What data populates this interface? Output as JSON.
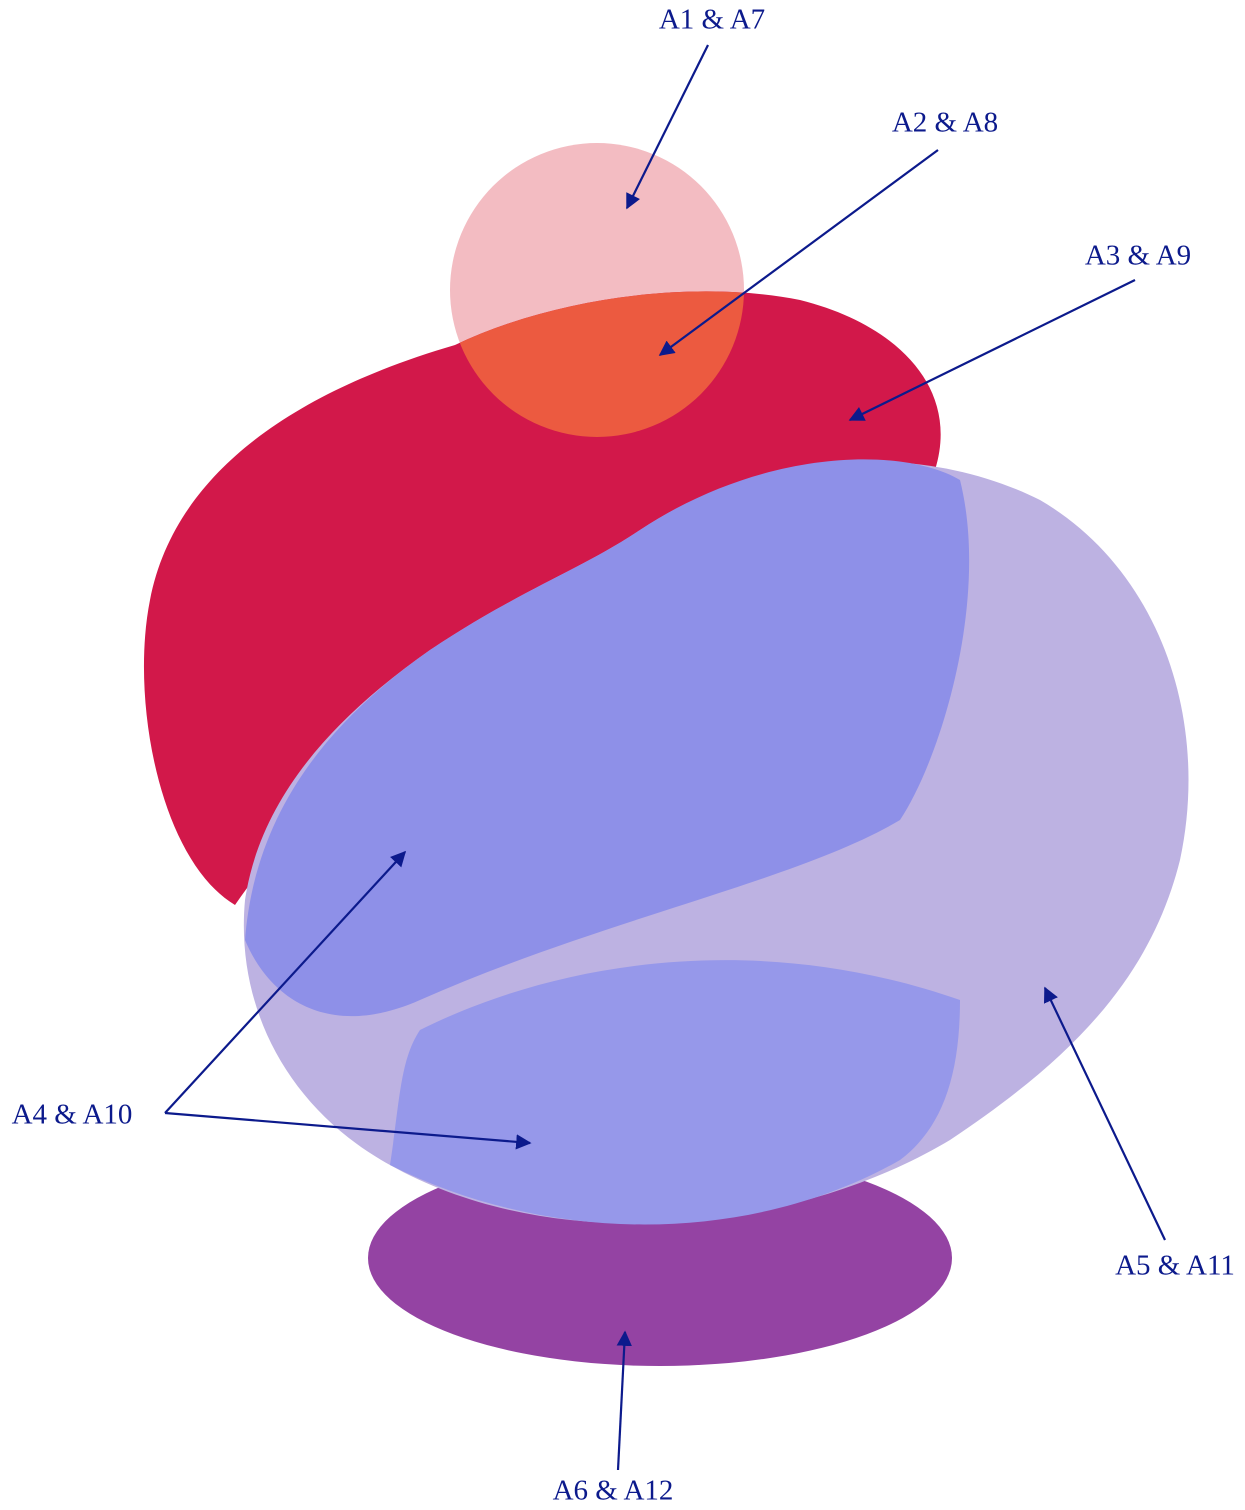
{
  "labels": [
    "A1 & A7",
    "A2 & A8",
    "A3 & A9",
    "A4 & A10",
    "A5 & A11",
    "A6 & A12"
  ]
}
